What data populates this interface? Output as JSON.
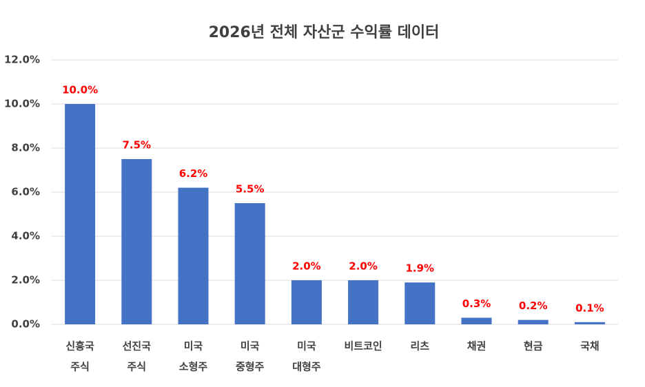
{
  "chart_data": {
    "type": "bar",
    "title": "2026년 전체 자산군 수익률 데이터",
    "categories": [
      [
        "신흥국",
        "주식"
      ],
      [
        "선진국",
        "주식"
      ],
      [
        "미국",
        "소형주"
      ],
      [
        "미국",
        "중형주"
      ],
      [
        "미국",
        "대형주"
      ],
      [
        "비트코인"
      ],
      [
        "리츠"
      ],
      [
        "채권"
      ],
      [
        "현금"
      ],
      [
        "국채"
      ]
    ],
    "values": [
      10.0,
      7.5,
      6.2,
      5.5,
      2.0,
      2.0,
      1.9,
      0.3,
      0.2,
      0.1
    ],
    "value_labels": [
      "10.0%",
      "7.5%",
      "6.2%",
      "5.5%",
      "2.0%",
      "2.0%",
      "1.9%",
      "0.3%",
      "0.2%",
      "0.1%"
    ],
    "color": "#4472c4",
    "value_label_color": "#ff0000",
    "ylim": [
      0,
      12
    ],
    "yticks": [
      {
        "value": 0,
        "label": "0.0%"
      },
      {
        "value": 2,
        "label": "2.0%"
      },
      {
        "value": 4,
        "label": "4.0%"
      },
      {
        "value": 6,
        "label": "6.0%"
      },
      {
        "value": 8,
        "label": "8.0%"
      },
      {
        "value": 10,
        "label": "10.0%"
      },
      {
        "value": 12,
        "label": "12.0%"
      }
    ],
    "grid": true
  }
}
